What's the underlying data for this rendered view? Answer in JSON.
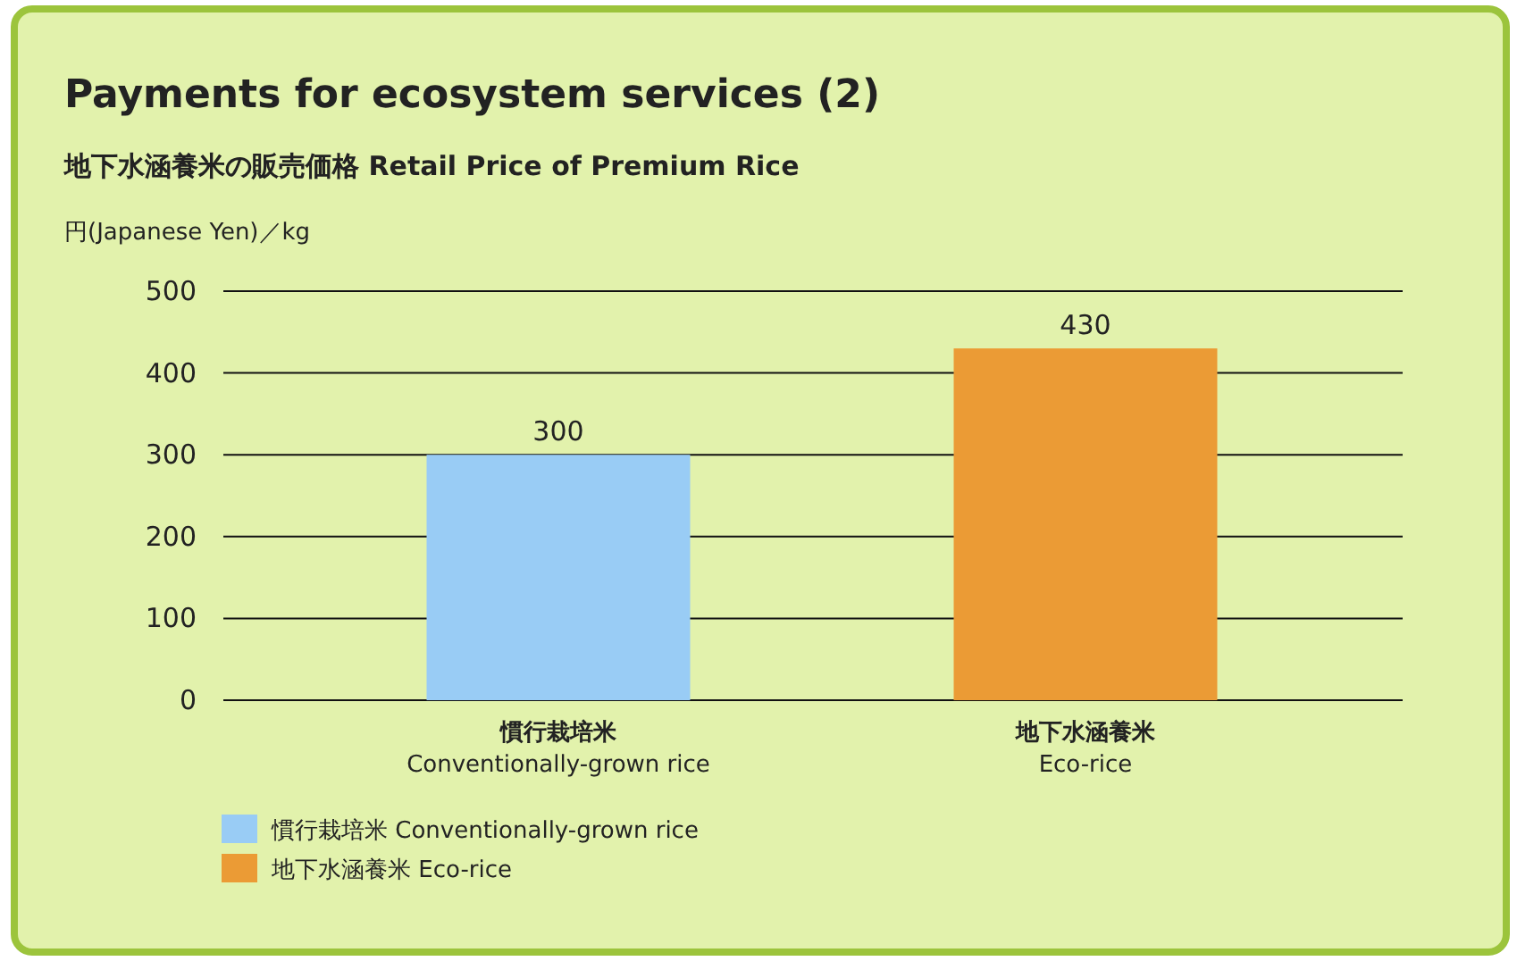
{
  "chart_data": {
    "type": "bar",
    "title": "Payments for ecosystem services (2)",
    "subtitle": "地下水涵養米の販売価格  Retail Price of Premium Rice",
    "ylabel": "円(Japanese Yen)／kg",
    "categories": [
      "慣行栽培米\nConventionally-grown rice",
      "地下水涵養米\nEco-rice"
    ],
    "series": [
      {
        "name": "慣行栽培米  Conventionally-grown rice",
        "color": "#99ccf5",
        "values": [
          300,
          null
        ]
      },
      {
        "name": "地下水涵養米  Eco-rice",
        "color": "#eb9b35",
        "values": [
          null,
          430
        ]
      }
    ],
    "stacked": true,
    "ylim": [
      0,
      500
    ],
    "yticks": [
      0,
      100,
      200,
      300,
      400,
      500
    ],
    "grid": "y",
    "data_labels": true,
    "legend": "bottom left"
  }
}
